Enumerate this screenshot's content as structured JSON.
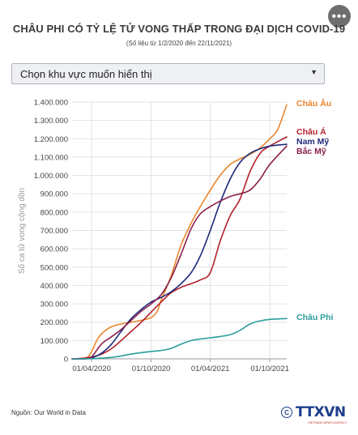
{
  "header": {
    "title": "CHÂU PHI CÓ TỶ LỆ TỬ VONG THẤP TRONG ĐẠI DỊCH COVID-19",
    "subtitle": "(Số liệu từ 1/2/2020 đến 22/11/2021)",
    "more_icon": "ellipsis-icon"
  },
  "dropdown": {
    "label": "Chọn khu vực muốn hiển thị",
    "caret_icon": "caret-down-icon"
  },
  "footer": {
    "source": "Nguồn: Our World in Data",
    "logo_text": "TTXVN",
    "logo_sub": "VIETNAM NEWS AGENCY",
    "copyright_icon": "copyright-icon"
  },
  "colors": {
    "europe": "#e8862c",
    "asia": "#b3202b",
    "south_america": "#1f2a7a",
    "north_america": "#8a1e4a",
    "africa": "#2a9d9a",
    "grid": "#e2e2e2",
    "axis_text": "#444444"
  },
  "chart_data": {
    "type": "line",
    "title": "CHÂU PHI CÓ TỶ LỆ TỬ VONG THẤP TRONG ĐẠI DỊCH COVID-19",
    "subtitle": "(Số liệu từ 1/2/2020 đến 22/11/2021)",
    "xlabel": "",
    "ylabel": "Số ca tử vong cộng dồn",
    "x_range": [
      "2020-02-01",
      "2021-11-22"
    ],
    "ylim": [
      0,
      1400000
    ],
    "y_ticks": [
      0,
      100000,
      200000,
      300000,
      400000,
      500000,
      600000,
      700000,
      800000,
      900000,
      1000000,
      1100000,
      1200000,
      1300000,
      1400000
    ],
    "y_tick_labels": [
      "0",
      "100.000",
      "200.000",
      "300.000",
      "400.000",
      "500.000",
      "600.000",
      "700.000",
      "800.000",
      "900.000",
      "1.000.000",
      "1.100.000",
      "1.200.000",
      "1.300.000",
      "1.400.000"
    ],
    "x_ticks": [
      {
        "date": "2020-04-01",
        "label": "01/04/2020"
      },
      {
        "date": "2020-10-01",
        "label": "01/10/2020"
      },
      {
        "date": "2021-04-01",
        "label": "01/04/2021"
      },
      {
        "date": "2021-10-01",
        "label": "01/10/2021"
      }
    ],
    "grid": true,
    "legend": "end-of-line labels",
    "series": [
      {
        "name": "Châu Âu",
        "key": "europe",
        "points": [
          [
            "2020-02-01",
            0
          ],
          [
            "2020-03-15",
            5000
          ],
          [
            "2020-04-01",
            40000
          ],
          [
            "2020-04-20",
            110000
          ],
          [
            "2020-05-10",
            150000
          ],
          [
            "2020-06-01",
            175000
          ],
          [
            "2020-07-01",
            190000
          ],
          [
            "2020-08-01",
            200000
          ],
          [
            "2020-09-01",
            210000
          ],
          [
            "2020-10-01",
            225000
          ],
          [
            "2020-10-20",
            260000
          ],
          [
            "2020-11-01",
            320000
          ],
          [
            "2020-12-01",
            450000
          ],
          [
            "2021-01-01",
            620000
          ],
          [
            "2021-02-01",
            740000
          ],
          [
            "2021-03-01",
            830000
          ],
          [
            "2021-04-01",
            920000
          ],
          [
            "2021-05-01",
            1000000
          ],
          [
            "2021-06-01",
            1060000
          ],
          [
            "2021-07-01",
            1090000
          ],
          [
            "2021-08-01",
            1115000
          ],
          [
            "2021-09-01",
            1150000
          ],
          [
            "2021-10-01",
            1200000
          ],
          [
            "2021-10-25",
            1250000
          ],
          [
            "2021-11-22",
            1385000
          ]
        ]
      },
      {
        "name": "Châu Á",
        "key": "asia",
        "points": [
          [
            "2020-02-01",
            0
          ],
          [
            "2020-03-01",
            3000
          ],
          [
            "2020-04-01",
            10000
          ],
          [
            "2020-05-01",
            25000
          ],
          [
            "2020-06-01",
            55000
          ],
          [
            "2020-07-01",
            100000
          ],
          [
            "2020-08-01",
            150000
          ],
          [
            "2020-09-01",
            200000
          ],
          [
            "2020-10-01",
            255000
          ],
          [
            "2020-11-01",
            310000
          ],
          [
            "2020-12-01",
            360000
          ],
          [
            "2021-01-01",
            390000
          ],
          [
            "2021-02-01",
            410000
          ],
          [
            "2021-03-01",
            430000
          ],
          [
            "2021-04-01",
            470000
          ],
          [
            "2021-05-01",
            640000
          ],
          [
            "2021-06-01",
            780000
          ],
          [
            "2021-07-01",
            870000
          ],
          [
            "2021-08-01",
            1020000
          ],
          [
            "2021-09-01",
            1120000
          ],
          [
            "2021-10-01",
            1160000
          ],
          [
            "2021-11-22",
            1210000
          ]
        ]
      },
      {
        "name": "Nam Mỹ",
        "key": "south_america",
        "points": [
          [
            "2020-02-01",
            0
          ],
          [
            "2020-03-15",
            1000
          ],
          [
            "2020-04-01",
            5000
          ],
          [
            "2020-05-01",
            30000
          ],
          [
            "2020-06-01",
            80000
          ],
          [
            "2020-07-01",
            150000
          ],
          [
            "2020-08-01",
            220000
          ],
          [
            "2020-09-01",
            270000
          ],
          [
            "2020-10-01",
            310000
          ],
          [
            "2020-11-01",
            335000
          ],
          [
            "2020-12-01",
            365000
          ],
          [
            "2021-01-01",
            410000
          ],
          [
            "2021-02-01",
            470000
          ],
          [
            "2021-03-01",
            560000
          ],
          [
            "2021-04-01",
            700000
          ],
          [
            "2021-05-01",
            850000
          ],
          [
            "2021-06-01",
            980000
          ],
          [
            "2021-07-01",
            1070000
          ],
          [
            "2021-08-01",
            1120000
          ],
          [
            "2021-09-01",
            1145000
          ],
          [
            "2021-10-01",
            1160000
          ],
          [
            "2021-11-22",
            1170000
          ]
        ]
      },
      {
        "name": "Bắc Mỹ",
        "key": "north_america",
        "points": [
          [
            "2020-02-01",
            0
          ],
          [
            "2020-03-15",
            1000
          ],
          [
            "2020-04-01",
            10000
          ],
          [
            "2020-05-01",
            80000
          ],
          [
            "2020-06-01",
            120000
          ],
          [
            "2020-07-01",
            160000
          ],
          [
            "2020-08-01",
            210000
          ],
          [
            "2020-09-01",
            260000
          ],
          [
            "2020-10-01",
            300000
          ],
          [
            "2020-11-01",
            350000
          ],
          [
            "2020-12-01",
            440000
          ],
          [
            "2021-01-01",
            570000
          ],
          [
            "2021-02-01",
            710000
          ],
          [
            "2021-03-01",
            790000
          ],
          [
            "2021-04-01",
            830000
          ],
          [
            "2021-05-01",
            860000
          ],
          [
            "2021-06-01",
            885000
          ],
          [
            "2021-07-01",
            900000
          ],
          [
            "2021-08-01",
            920000
          ],
          [
            "2021-09-01",
            980000
          ],
          [
            "2021-10-01",
            1060000
          ],
          [
            "2021-11-22",
            1160000
          ]
        ]
      },
      {
        "name": "Châu Phi",
        "key": "africa",
        "points": [
          [
            "2020-02-01",
            0
          ],
          [
            "2020-04-01",
            1000
          ],
          [
            "2020-05-01",
            4000
          ],
          [
            "2020-06-01",
            8000
          ],
          [
            "2020-07-01",
            16000
          ],
          [
            "2020-08-01",
            26000
          ],
          [
            "2020-09-01",
            34000
          ],
          [
            "2020-10-01",
            40000
          ],
          [
            "2020-11-01",
            46000
          ],
          [
            "2020-12-01",
            57000
          ],
          [
            "2021-01-01",
            80000
          ],
          [
            "2021-02-01",
            100000
          ],
          [
            "2021-03-01",
            108000
          ],
          [
            "2021-04-01",
            115000
          ],
          [
            "2021-05-01",
            122000
          ],
          [
            "2021-06-01",
            132000
          ],
          [
            "2021-07-01",
            155000
          ],
          [
            "2021-08-01",
            190000
          ],
          [
            "2021-09-01",
            207000
          ],
          [
            "2021-10-01",
            215000
          ],
          [
            "2021-11-22",
            220000
          ]
        ]
      }
    ]
  }
}
